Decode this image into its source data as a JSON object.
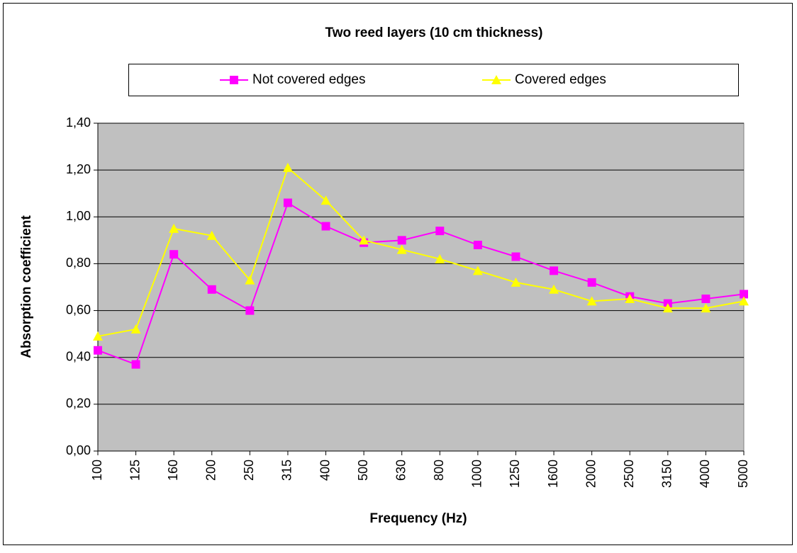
{
  "chart_data": {
    "type": "line",
    "title": "Two reed layers (10 cm thickness)",
    "x_label": "Frequency (Hz)",
    "y_label": "Absorption coefficient",
    "categories": [
      "100",
      "125",
      "160",
      "200",
      "250",
      "315",
      "400",
      "500",
      "630",
      "800",
      "1000",
      "1250",
      "1600",
      "2000",
      "2500",
      "3150",
      "4000",
      "5000"
    ],
    "series": [
      {
        "name": "Not covered edges",
        "color": "#ff00ff",
        "marker": "square",
        "values": [
          0.43,
          0.37,
          0.84,
          0.69,
          0.6,
          1.06,
          0.96,
          0.89,
          0.9,
          0.94,
          0.88,
          0.83,
          0.77,
          0.72,
          0.66,
          0.63,
          0.65,
          0.67
        ]
      },
      {
        "name": "Covered edges",
        "color": "#ffff00",
        "marker": "triangle",
        "values": [
          0.49,
          0.52,
          0.95,
          0.92,
          0.73,
          1.21,
          1.07,
          0.9,
          0.86,
          0.82,
          0.77,
          0.72,
          0.69,
          0.64,
          0.65,
          0.61,
          0.61,
          0.64
        ]
      }
    ],
    "ylim": [
      0,
      1.4
    ],
    "yticks": [
      {
        "value": 0,
        "label": "0,00"
      },
      {
        "value": 0.2,
        "label": "0,20"
      },
      {
        "value": 0.4,
        "label": "0,40"
      },
      {
        "value": 0.6,
        "label": "0,60"
      },
      {
        "value": 0.8,
        "label": "0,80"
      },
      {
        "value": 1.0,
        "label": "1,00"
      },
      {
        "value": 1.2,
        "label": "1,20"
      },
      {
        "value": 1.4,
        "label": "1,40"
      }
    ],
    "grid": true,
    "legend": "top",
    "plot_background": "#c0c0c0"
  }
}
